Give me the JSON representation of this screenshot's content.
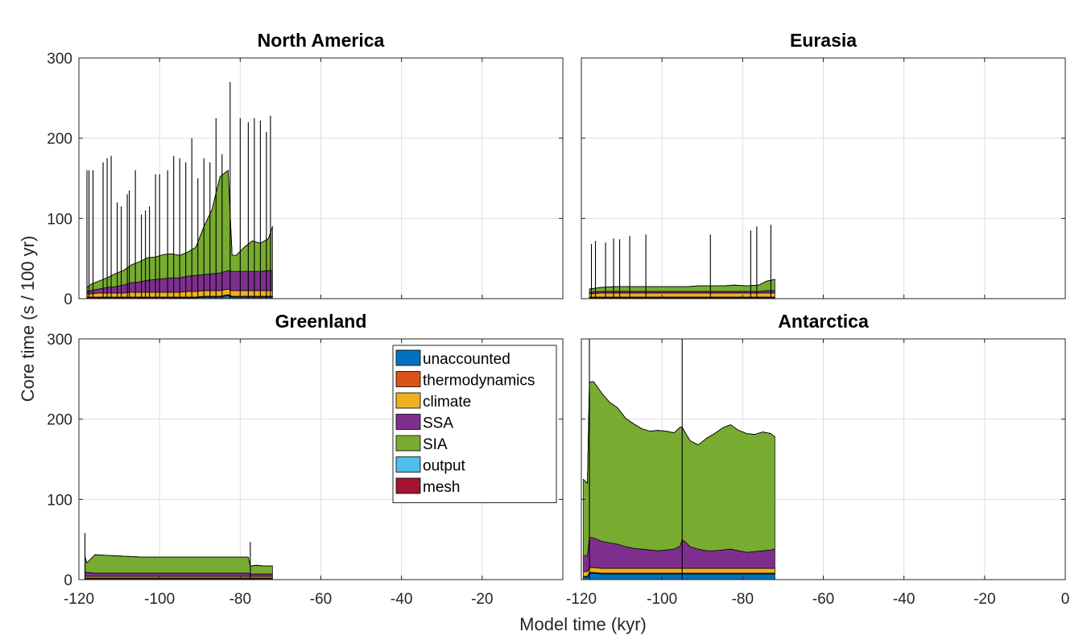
{
  "figure": {
    "xlabel": "Model time (kyr)",
    "ylabel": "Core time (s / 100 yr)",
    "xlim": [
      -120,
      0
    ],
    "ylim": [
      0,
      300
    ],
    "legend_location": "inside Greenland panel, top-right",
    "grid": true,
    "stack_order": [
      "unaccounted",
      "thermodynamics",
      "climate",
      "SSA",
      "SIA",
      "output",
      "mesh"
    ]
  },
  "legend": [
    {
      "name": "unaccounted",
      "color": "#0072BD"
    },
    {
      "name": "thermodynamics",
      "color": "#D95319"
    },
    {
      "name": "climate",
      "color": "#EDB120"
    },
    {
      "name": "SSA",
      "color": "#7E2F8E"
    },
    {
      "name": "SIA",
      "color": "#77AC30"
    },
    {
      "name": "output",
      "color": "#4DBEEE"
    },
    {
      "name": "mesh",
      "color": "#A2142F"
    }
  ],
  "chart_data": [
    {
      "type": "area",
      "title": "North America",
      "xlim": [
        -120,
        0
      ],
      "ylim": [
        0,
        300
      ],
      "xticks": [
        -120,
        -100,
        -80,
        -60,
        -40,
        -20
      ],
      "yticks": [
        0,
        100,
        200,
        300
      ],
      "show_yticklabels": true,
      "show_xticklabels": false,
      "x": [
        -118,
        -117,
        -115,
        -113,
        -111,
        -109,
        -107,
        -105,
        -103,
        -101,
        -99,
        -97,
        -95,
        -93,
        -91,
        -89,
        -87,
        -85,
        -83,
        -82,
        -81,
        -79,
        -77,
        -75,
        -73,
        -72
      ],
      "series": [
        {
          "name": "unaccounted",
          "values": [
            1,
            1,
            1,
            1,
            1,
            1,
            1,
            1,
            1,
            1,
            1,
            1,
            1,
            1,
            1,
            2,
            2,
            2,
            4,
            2,
            2,
            2,
            2,
            2,
            2,
            2
          ]
        },
        {
          "name": "thermodynamics",
          "values": [
            1,
            1,
            1,
            1,
            1,
            1,
            1,
            1,
            1,
            1,
            1,
            1,
            1,
            1,
            1,
            1,
            1,
            1,
            1,
            1,
            1,
            1,
            1,
            1,
            1,
            1
          ]
        },
        {
          "name": "climate",
          "values": [
            4,
            4,
            5,
            5,
            5,
            5,
            6,
            6,
            6,
            6,
            6,
            6,
            6,
            7,
            7,
            7,
            7,
            7,
            7,
            7,
            7,
            7,
            7,
            7,
            7,
            7
          ]
        },
        {
          "name": "SSA",
          "values": [
            3,
            4,
            5,
            7,
            8,
            10,
            12,
            13,
            15,
            16,
            17,
            18,
            18,
            19,
            20,
            20,
            21,
            22,
            23,
            24,
            24,
            24,
            24,
            24,
            25,
            25
          ]
        },
        {
          "name": "SIA",
          "values": [
            5,
            8,
            10,
            12,
            16,
            18,
            22,
            25,
            28,
            28,
            30,
            30,
            28,
            30,
            35,
            60,
            80,
            120,
            125,
            20,
            20,
            30,
            38,
            35,
            40,
            55
          ]
        },
        {
          "name": "output",
          "values": [
            0,
            0,
            0,
            0,
            0,
            0,
            0,
            0,
            0,
            0,
            0,
            0,
            0,
            0,
            0,
            0,
            0,
            0,
            0,
            0,
            0,
            0,
            0,
            0,
            0,
            0
          ]
        },
        {
          "name": "mesh",
          "values": [
            0,
            0,
            0,
            0,
            0,
            0,
            0,
            0,
            0,
            0,
            0,
            0,
            0,
            0,
            0,
            0,
            0,
            0,
            0,
            0,
            0,
            0,
            0,
            0,
            0,
            0
          ]
        }
      ],
      "spikes": [
        {
          "x": -118.0,
          "y": 160
        },
        {
          "x": -117.5,
          "y": 160
        },
        {
          "x": -116.5,
          "y": 160
        },
        {
          "x": -114.0,
          "y": 170
        },
        {
          "x": -113.0,
          "y": 175
        },
        {
          "x": -112.0,
          "y": 178
        },
        {
          "x": -110.5,
          "y": 120
        },
        {
          "x": -109.5,
          "y": 115
        },
        {
          "x": -108.0,
          "y": 130
        },
        {
          "x": -107.5,
          "y": 135
        },
        {
          "x": -106.0,
          "y": 160
        },
        {
          "x": -104.5,
          "y": 105
        },
        {
          "x": -103.5,
          "y": 110
        },
        {
          "x": -102.5,
          "y": 115
        },
        {
          "x": -101.0,
          "y": 155
        },
        {
          "x": -100.0,
          "y": 155
        },
        {
          "x": -98.0,
          "y": 160
        },
        {
          "x": -96.5,
          "y": 178
        },
        {
          "x": -95.0,
          "y": 175
        },
        {
          "x": -93.5,
          "y": 170
        },
        {
          "x": -92.0,
          "y": 200
        },
        {
          "x": -90.5,
          "y": 150
        },
        {
          "x": -89.0,
          "y": 175
        },
        {
          "x": -87.5,
          "y": 170
        },
        {
          "x": -86.0,
          "y": 225
        },
        {
          "x": -84.5,
          "y": 180
        },
        {
          "x": -82.5,
          "y": 270
        },
        {
          "x": -80.0,
          "y": 225
        },
        {
          "x": -78.0,
          "y": 220
        },
        {
          "x": -76.5,
          "y": 225
        },
        {
          "x": -75.0,
          "y": 222
        },
        {
          "x": -73.5,
          "y": 208
        },
        {
          "x": -72.5,
          "y": 228
        }
      ]
    },
    {
      "type": "area",
      "title": "Eurasia",
      "xlim": [
        -120,
        0
      ],
      "ylim": [
        0,
        300
      ],
      "xticks": [
        -120,
        -100,
        -80,
        -60,
        -40,
        -20
      ],
      "yticks": [
        0,
        100,
        200,
        300
      ],
      "show_yticklabels": false,
      "show_xticklabels": false,
      "x": [
        -118,
        -115,
        -112,
        -109,
        -106,
        -103,
        -100,
        -97,
        -94,
        -91,
        -88,
        -85,
        -82,
        -79,
        -76,
        -74,
        -72
      ],
      "series": [
        {
          "name": "unaccounted",
          "values": [
            1,
            1,
            1,
            1,
            1,
            1,
            1,
            1,
            1,
            1,
            1,
            1,
            1,
            1,
            1,
            1,
            1
          ]
        },
        {
          "name": "thermodynamics",
          "values": [
            1,
            1,
            1,
            1,
            1,
            1,
            1,
            1,
            1,
            1,
            1,
            1,
            1,
            1,
            1,
            1,
            1
          ]
        },
        {
          "name": "climate",
          "values": [
            4,
            5,
            5,
            5,
            5,
            5,
            5,
            5,
            5,
            5,
            5,
            5,
            5,
            5,
            5,
            5,
            5
          ]
        },
        {
          "name": "SSA",
          "values": [
            2,
            2,
            2,
            2,
            2,
            2,
            2,
            2,
            2,
            2,
            2,
            2,
            2,
            2,
            2,
            3,
            3
          ]
        },
        {
          "name": "SIA",
          "values": [
            4,
            5,
            6,
            6,
            6,
            6,
            6,
            6,
            6,
            7,
            7,
            7,
            8,
            7,
            8,
            12,
            14
          ]
        },
        {
          "name": "output",
          "values": [
            0,
            0,
            0,
            0,
            0,
            0,
            0,
            0,
            0,
            0,
            0,
            0,
            0,
            0,
            0,
            0,
            0
          ]
        },
        {
          "name": "mesh",
          "values": [
            0,
            0,
            0,
            0,
            0,
            0,
            0,
            0,
            0,
            0,
            0,
            0,
            0,
            0,
            0,
            0,
            0
          ]
        }
      ],
      "spikes": [
        {
          "x": -117.5,
          "y": 68
        },
        {
          "x": -116.5,
          "y": 72
        },
        {
          "x": -114.0,
          "y": 70
        },
        {
          "x": -112.0,
          "y": 75
        },
        {
          "x": -110.5,
          "y": 74
        },
        {
          "x": -108.0,
          "y": 78
        },
        {
          "x": -104.0,
          "y": 80
        },
        {
          "x": -88.0,
          "y": 80
        },
        {
          "x": -78.0,
          "y": 85
        },
        {
          "x": -76.5,
          "y": 90
        },
        {
          "x": -73.0,
          "y": 92
        }
      ]
    },
    {
      "type": "area",
      "title": "Greenland",
      "xlim": [
        -120,
        0
      ],
      "ylim": [
        0,
        300
      ],
      "xticks": [
        -120,
        -100,
        -80,
        -60,
        -40,
        -20
      ],
      "yticks": [
        0,
        100,
        200,
        300
      ],
      "show_yticklabels": true,
      "show_xticklabels": true,
      "x": [
        -118.5,
        -118,
        -116,
        -112,
        -108,
        -104,
        -100,
        -96,
        -92,
        -88,
        -84,
        -80,
        -78,
        -77.5,
        -76,
        -74,
        -72
      ],
      "series": [
        {
          "name": "unaccounted",
          "values": [
            1,
            1,
            1,
            1,
            1,
            1,
            1,
            1,
            1,
            1,
            1,
            1,
            1,
            1,
            1,
            1,
            1
          ]
        },
        {
          "name": "thermodynamics",
          "values": [
            1,
            1,
            1,
            1,
            1,
            1,
            1,
            1,
            1,
            1,
            1,
            1,
            1,
            1,
            1,
            1,
            1
          ]
        },
        {
          "name": "climate",
          "values": [
            2,
            2,
            2,
            2,
            2,
            2,
            2,
            2,
            2,
            2,
            2,
            2,
            2,
            2,
            2,
            2,
            2
          ]
        },
        {
          "name": "SSA",
          "values": [
            5,
            5,
            4,
            4,
            4,
            4,
            4,
            4,
            4,
            4,
            4,
            4,
            4,
            3,
            3,
            3,
            3
          ]
        },
        {
          "name": "SIA",
          "values": [
            20,
            12,
            23,
            22,
            21,
            20,
            20,
            20,
            20,
            20,
            20,
            20,
            20,
            10,
            11,
            10,
            10
          ]
        },
        {
          "name": "output",
          "values": [
            0,
            0,
            0,
            0,
            0,
            0,
            0,
            0,
            0,
            0,
            0,
            0,
            0,
            0,
            0,
            0,
            0
          ]
        },
        {
          "name": "mesh",
          "values": [
            0,
            0,
            0,
            0,
            0,
            0,
            0,
            0,
            0,
            0,
            0,
            0,
            0,
            0,
            0,
            0,
            0
          ]
        }
      ],
      "spikes": [
        {
          "x": -118.5,
          "y": 58
        },
        {
          "x": -77.5,
          "y": 47
        }
      ]
    },
    {
      "type": "area",
      "title": "Antarctica",
      "xlim": [
        -120,
        0
      ],
      "ylim": [
        0,
        300
      ],
      "xticks": [
        -120,
        -100,
        -80,
        -60,
        -40,
        -20,
        0
      ],
      "yticks": [
        0,
        100,
        200,
        300
      ],
      "show_yticklabels": false,
      "show_xticklabels": true,
      "x": [
        -119.5,
        -118.5,
        -118,
        -117,
        -115,
        -113,
        -111,
        -109,
        -107,
        -105,
        -103,
        -101,
        -99,
        -97,
        -95.5,
        -95,
        -94,
        -93,
        -91,
        -89,
        -87,
        -85,
        -83,
        -81,
        -79,
        -77,
        -75,
        -73,
        -72
      ],
      "series": [
        {
          "name": "unaccounted",
          "values": [
            3,
            3,
            8,
            8,
            7,
            7,
            7,
            7,
            7,
            7,
            7,
            7,
            7,
            7,
            7,
            7,
            7,
            7,
            7,
            7,
            7,
            7,
            7,
            7,
            7,
            7,
            7,
            7,
            7
          ]
        },
        {
          "name": "thermodynamics",
          "values": [
            1,
            1,
            1,
            1,
            1,
            1,
            1,
            1,
            1,
            1,
            1,
            1,
            1,
            1,
            1,
            1,
            1,
            1,
            1,
            1,
            1,
            1,
            1,
            1,
            1,
            1,
            1,
            1,
            1
          ]
        },
        {
          "name": "climate",
          "values": [
            6,
            6,
            6,
            6,
            6,
            6,
            6,
            6,
            6,
            6,
            6,
            6,
            6,
            6,
            6,
            6,
            6,
            6,
            6,
            6,
            6,
            6,
            6,
            6,
            6,
            6,
            6,
            6,
            6
          ]
        },
        {
          "name": "SSA",
          "values": [
            20,
            20,
            38,
            37,
            34,
            32,
            30,
            27,
            25,
            24,
            23,
            22,
            23,
            24,
            28,
            36,
            32,
            27,
            24,
            22,
            22,
            23,
            24,
            22,
            20,
            21,
            22,
            23,
            24
          ]
        },
        {
          "name": "SIA",
          "values": [
            95,
            90,
            193,
            195,
            185,
            175,
            170,
            160,
            155,
            150,
            148,
            150,
            148,
            145,
            148,
            140,
            135,
            132,
            130,
            140,
            146,
            152,
            155,
            150,
            148,
            146,
            148,
            145,
            140
          ]
        },
        {
          "name": "output",
          "values": [
            0,
            0,
            0,
            0,
            0,
            0,
            0,
            0,
            0,
            0,
            0,
            0,
            0,
            0,
            0,
            0,
            0,
            0,
            0,
            0,
            0,
            0,
            0,
            0,
            0,
            0,
            0,
            0,
            0
          ]
        },
        {
          "name": "mesh",
          "values": [
            0,
            0,
            0,
            0,
            0,
            0,
            0,
            0,
            0,
            0,
            0,
            0,
            0,
            0,
            0,
            0,
            0,
            0,
            0,
            0,
            0,
            0,
            0,
            0,
            0,
            0,
            0,
            0,
            0
          ]
        }
      ],
      "spikes": [
        {
          "x": -118.0,
          "y": 300
        },
        {
          "x": -95.0,
          "y": 300
        }
      ]
    }
  ]
}
